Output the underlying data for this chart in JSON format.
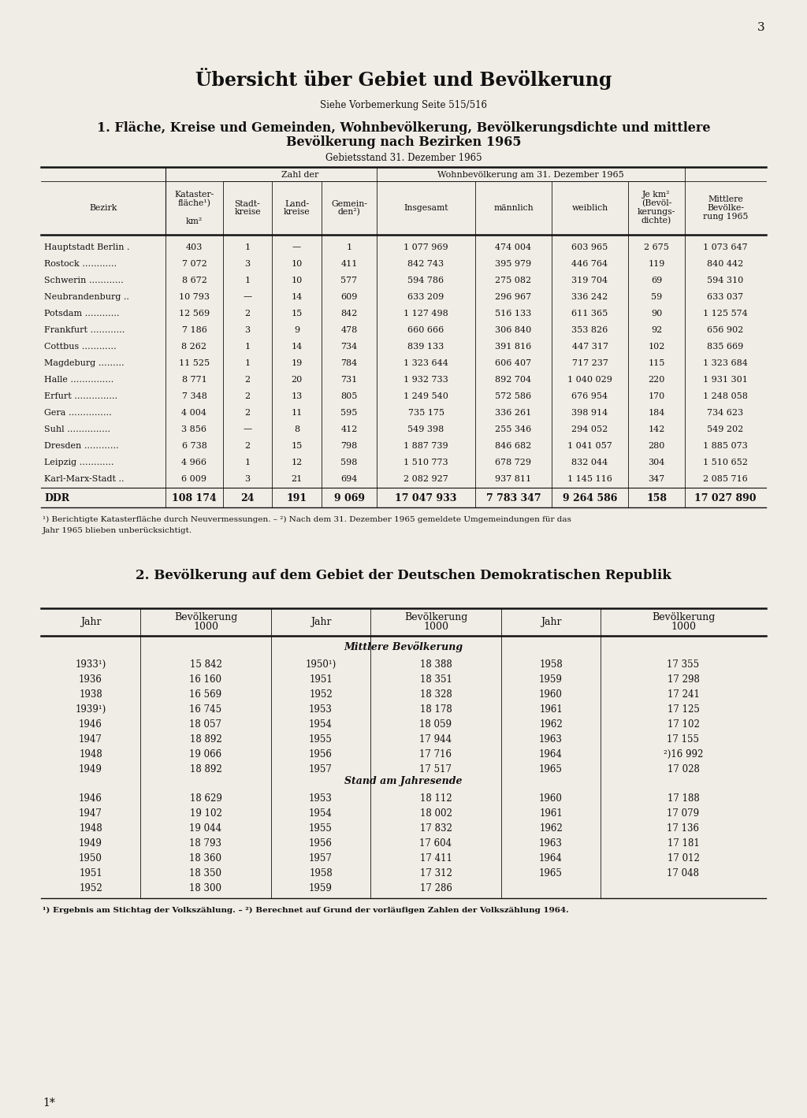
{
  "page_number": "3",
  "main_title": "Übersicht über Gebiet und Bevölkerung",
  "subtitle": "Siehe Vorbemerkung Seite 515/516",
  "table1_title_line1": "1. Fläche, Kreise und Gemeinden, Wohnbevölkerung, Bevölkerungsdichte und mittlere",
  "table1_title_line2": "Bevölkerung nach Bezirken 1965",
  "table1_subtitle": "Gebietsstand 31. Dezember 1965",
  "table1_data": [
    [
      "Hauptstadt Berlin .",
      "403",
      "1",
      "—",
      "1",
      "1 077 969",
      "474 004",
      "603 965",
      "2 675",
      "1 073 647"
    ],
    [
      "Rostock …………",
      "7 072",
      "3",
      "10",
      "411",
      "842 743",
      "395 979",
      "446 764",
      "119",
      "840 442"
    ],
    [
      "Schwerin …………",
      "8 672",
      "1",
      "10",
      "577",
      "594 786",
      "275 082",
      "319 704",
      "69",
      "594 310"
    ],
    [
      "Neubrandenburg ..",
      "10 793",
      "—",
      "14",
      "609",
      "633 209",
      "296 967",
      "336 242",
      "59",
      "633 037"
    ],
    [
      "Potsdam …………",
      "12 569",
      "2",
      "15",
      "842",
      "1 127 498",
      "516 133",
      "611 365",
      "90",
      "1 125 574"
    ],
    [
      "Frankfurt …………",
      "7 186",
      "3",
      "9",
      "478",
      "660 666",
      "306 840",
      "353 826",
      "92",
      "656 902"
    ],
    [
      "Cottbus …………",
      "8 262",
      "1",
      "14",
      "734",
      "839 133",
      "391 816",
      "447 317",
      "102",
      "835 669"
    ],
    [
      "Magdeburg ………",
      "11 525",
      "1",
      "19",
      "784",
      "1 323 644",
      "606 407",
      "717 237",
      "115",
      "1 323 684"
    ],
    [
      "Halle ……………",
      "8 771",
      "2",
      "20",
      "731",
      "1 932 733",
      "892 704",
      "1 040 029",
      "220",
      "1 931 301"
    ],
    [
      "Erfurt ……………",
      "7 348",
      "2",
      "13",
      "805",
      "1 249 540",
      "572 586",
      "676 954",
      "170",
      "1 248 058"
    ],
    [
      "Gera ……………",
      "4 004",
      "2",
      "11",
      "595",
      "735 175",
      "336 261",
      "398 914",
      "184",
      "734 623"
    ],
    [
      "Suhl ……………",
      "3 856",
      "—",
      "8",
      "412",
      "549 398",
      "255 346",
      "294 052",
      "142",
      "549 202"
    ],
    [
      "Dresden …………",
      "6 738",
      "2",
      "15",
      "798",
      "1 887 739",
      "846 682",
      "1 041 057",
      "280",
      "1 885 073"
    ],
    [
      "Leipzig …………",
      "4 966",
      "1",
      "12",
      "598",
      "1 510 773",
      "678 729",
      "832 044",
      "304",
      "1 510 652"
    ],
    [
      "Karl-Marx-Stadt ..",
      "6 009",
      "3",
      "21",
      "694",
      "2 082 927",
      "937 811",
      "1 145 116",
      "347",
      "2 085 716"
    ]
  ],
  "table1_total": [
    "DDR",
    "108 174",
    "24",
    "191",
    "9 069",
    "17 047 933",
    "7 783 347",
    "9 264 586",
    "158",
    "17 027 890"
  ],
  "table1_footnote1": "¹) Berichtigte Katasterfläche durch Neuvermessungen. – ²) Nach dem 31. Dezember 1965 gemeldete Umgemeindungen für das",
  "table1_footnote2": "Jahr 1965 blieben unberücksichtigt.",
  "table2_title": "2. Bevölkerung auf dem Gebiet der Deutschen Demokratischen Republik",
  "table2_section1": "Mittlere Bevölkerung",
  "table2_mittlere": [
    [
      "1933¹)",
      "15 842",
      "1950¹)",
      "18 388",
      "1958",
      "17 355"
    ],
    [
      "1936",
      "16 160",
      "1951",
      "18 351",
      "1959",
      "17 298"
    ],
    [
      "1938",
      "16 569",
      "1952",
      "18 328",
      "1960",
      "17 241"
    ],
    [
      "1939¹)",
      "16 745",
      "1953",
      "18 178",
      "1961",
      "17 125"
    ],
    [
      "1946",
      "18 057",
      "1954",
      "18 059",
      "1962",
      "17 102"
    ],
    [
      "1947",
      "18 892",
      "1955",
      "17 944",
      "1963",
      "17 155"
    ],
    [
      "1948",
      "19 066",
      "1956",
      "17 716",
      "1964",
      "²)16 992"
    ],
    [
      "1949",
      "18 892",
      "1957",
      "17 517",
      "1965",
      "17 028"
    ]
  ],
  "table2_section2": "Stand am Jahresende",
  "table2_stand": [
    [
      "1946",
      "18 629",
      "1953",
      "18 112",
      "1960",
      "17 188"
    ],
    [
      "1947",
      "19 102",
      "1954",
      "18 002",
      "1961",
      "17 079"
    ],
    [
      "1948",
      "19 044",
      "1955",
      "17 832",
      "1962",
      "17 136"
    ],
    [
      "1949",
      "18 793",
      "1956",
      "17 604",
      "1963",
      "17 181"
    ],
    [
      "1950",
      "18 360",
      "1957",
      "17 411",
      "1964",
      "17 012"
    ],
    [
      "1951",
      "18 350",
      "1958",
      "17 312",
      "1965",
      "17 048"
    ],
    [
      "1952",
      "18 300",
      "1959",
      "17 286",
      "",
      ""
    ]
  ],
  "table2_footnote": "¹) Ergebnis am Stichtag der Volkszählung. – ²) Berechnet auf Grund der vorläufigen Zahlen der Volkszählung 1964.",
  "bottom_label": "1*",
  "bg_color": "#f0ede6",
  "text_color": "#111111"
}
